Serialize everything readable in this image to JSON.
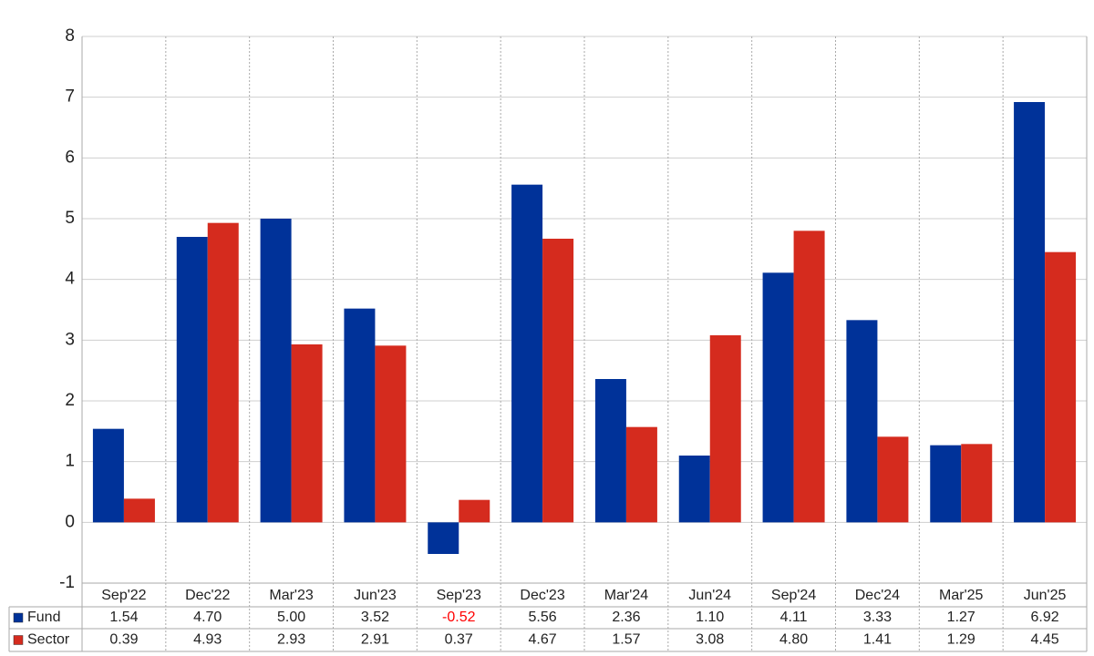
{
  "chart_data": {
    "type": "bar",
    "categories": [
      "Sep'22",
      "Dec'22",
      "Mar'23",
      "Jun'23",
      "Sep'23",
      "Dec'23",
      "Mar'24",
      "Jun'24",
      "Sep'24",
      "Dec'24",
      "Mar'25",
      "Jun'25"
    ],
    "series": [
      {
        "name": "Fund",
        "color": "#003299",
        "values": [
          1.54,
          4.7,
          5.0,
          3.52,
          -0.52,
          5.56,
          2.36,
          1.1,
          4.11,
          3.33,
          1.27,
          6.92
        ],
        "value_labels": [
          "1.54",
          "4.70",
          "5.00",
          "3.52",
          "-0.52",
          "5.56",
          "2.36",
          "1.10",
          "4.11",
          "3.33",
          "1.27",
          "6.92"
        ]
      },
      {
        "name": "Sector",
        "color": "#d52b1e",
        "values": [
          0.39,
          4.93,
          2.93,
          2.91,
          0.37,
          4.67,
          1.57,
          3.08,
          4.8,
          1.41,
          1.29,
          4.45
        ],
        "value_labels": [
          "0.39",
          "4.93",
          "2.93",
          "2.91",
          "0.37",
          "4.67",
          "1.57",
          "3.08",
          "4.80",
          "1.41",
          "1.29",
          "4.45"
        ]
      }
    ],
    "ylim": [
      -1,
      8
    ],
    "yticks": [
      -1,
      0,
      1,
      2,
      3,
      4,
      5,
      6,
      7,
      8
    ],
    "grid": true,
    "negative_label_color": "#ff0000"
  }
}
